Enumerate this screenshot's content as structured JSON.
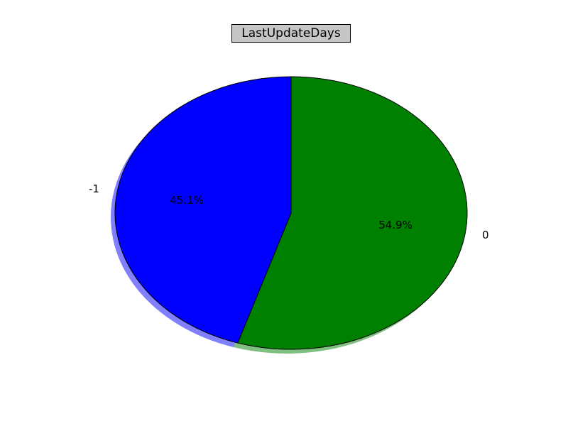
{
  "chart_data": {
    "type": "pie",
    "title": "LastUpdateDays",
    "categories": [
      "0",
      "-1"
    ],
    "values": [
      54.9,
      45.1
    ],
    "value_labels": [
      "54.9%",
      "45.1%"
    ],
    "colors": [
      "#008000",
      "#0000ff"
    ],
    "start_angle_deg": 90,
    "direction": "clockwise",
    "shadow": true,
    "legend": "none"
  }
}
